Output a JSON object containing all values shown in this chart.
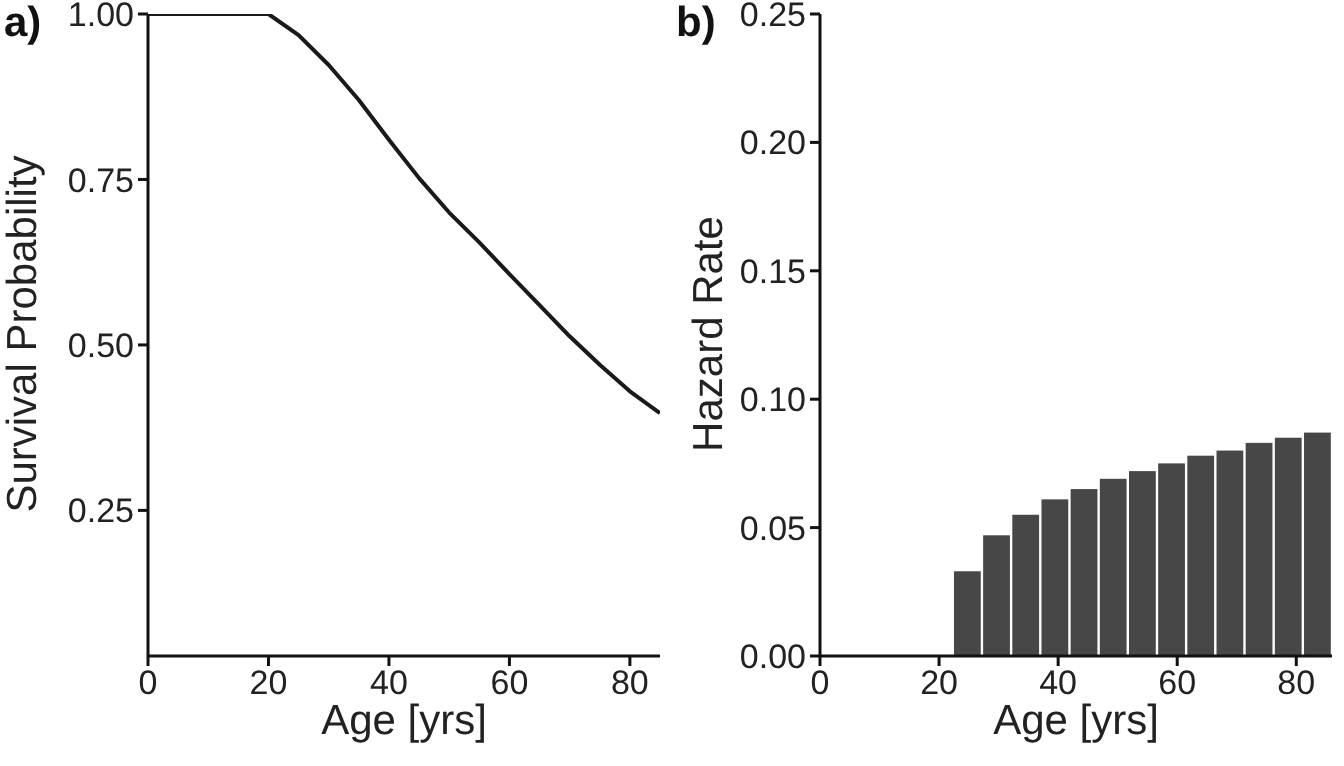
{
  "chart_data": [
    {
      "type": "line",
      "title": "a)",
      "xlabel": "Age [yrs]",
      "ylabel": "Survival Probability",
      "color": "#1a1a1a",
      "marker": "none",
      "line_style": "solid",
      "grid": false,
      "legend": false,
      "x": [
        0,
        20,
        25,
        30,
        35,
        40,
        45,
        50,
        55,
        60,
        65,
        70,
        75,
        80,
        85
      ],
      "values": [
        1,
        1,
        0.968,
        0.923,
        0.87,
        0.81,
        0.752,
        0.7,
        0.655,
        0.607,
        0.56,
        0.513,
        0.47,
        0.43,
        0.397
      ],
      "xlim": [
        0,
        85
      ],
      "xticks": [
        0,
        20,
        40,
        60,
        80
      ],
      "ylim": [
        0.03,
        1
      ],
      "yticks": [
        {
          "value": 0.25,
          "label": "0.25"
        },
        {
          "value": 0.5,
          "label": "0.50"
        },
        {
          "value": 0.75,
          "label": "0.75"
        },
        {
          "value": 1,
          "label": "1.00"
        }
      ]
    },
    {
      "type": "histogram",
      "title": "b)",
      "xlabel": "Age [yrs]",
      "ylabel": "Hazard Rate",
      "color": "#474747",
      "grid": false,
      "legend": false,
      "bins": [
        22.3,
        27.2,
        32.1,
        37,
        41.9,
        46.8,
        51.7,
        56.6,
        61.5,
        66.4,
        71.3,
        76.2,
        81.1,
        86
      ],
      "values": [
        0.033,
        0.047,
        0.055,
        0.061,
        0.065,
        0.069,
        0.072,
        0.075,
        0.078,
        0.08,
        0.083,
        0.085,
        0.087
      ],
      "xlim": [
        0,
        86
      ],
      "xticks": [
        0,
        20,
        40,
        60,
        80
      ],
      "ylim": [
        0,
        0.25
      ],
      "yticks": [
        {
          "value": 0,
          "label": "0.00"
        },
        {
          "value": 0.05,
          "label": "0.05"
        },
        {
          "value": 0.1,
          "label": "0.10"
        },
        {
          "value": 0.15,
          "label": "0.15"
        },
        {
          "value": 0.2,
          "label": "0.20"
        },
        {
          "value": 0.25,
          "label": "0.25"
        }
      ]
    }
  ]
}
